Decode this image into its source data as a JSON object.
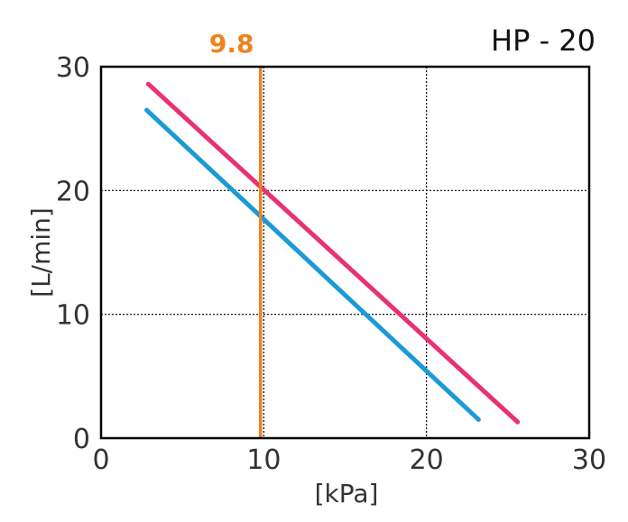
{
  "chart_data": {
    "type": "line",
    "title": "HP - 20",
    "xlabel": "[kPa]",
    "ylabel": "[L/min]",
    "xlim": [
      0,
      30
    ],
    "ylim": [
      0,
      30
    ],
    "x_ticks": [
      "0",
      "10",
      "20",
      "30"
    ],
    "y_ticks": [
      "0",
      "10",
      "20",
      "30"
    ],
    "grid": true,
    "series": [
      {
        "color": "#E8336E",
        "x": [
          2.9,
          25.6
        ],
        "y": [
          28.6,
          1.3
        ]
      },
      {
        "color": "#1A9AD6",
        "x": [
          2.8,
          23.2
        ],
        "y": [
          26.5,
          1.5
        ]
      }
    ],
    "marker_line": {
      "x": 9.8,
      "label": "9.8",
      "color": "#F0821E"
    }
  }
}
